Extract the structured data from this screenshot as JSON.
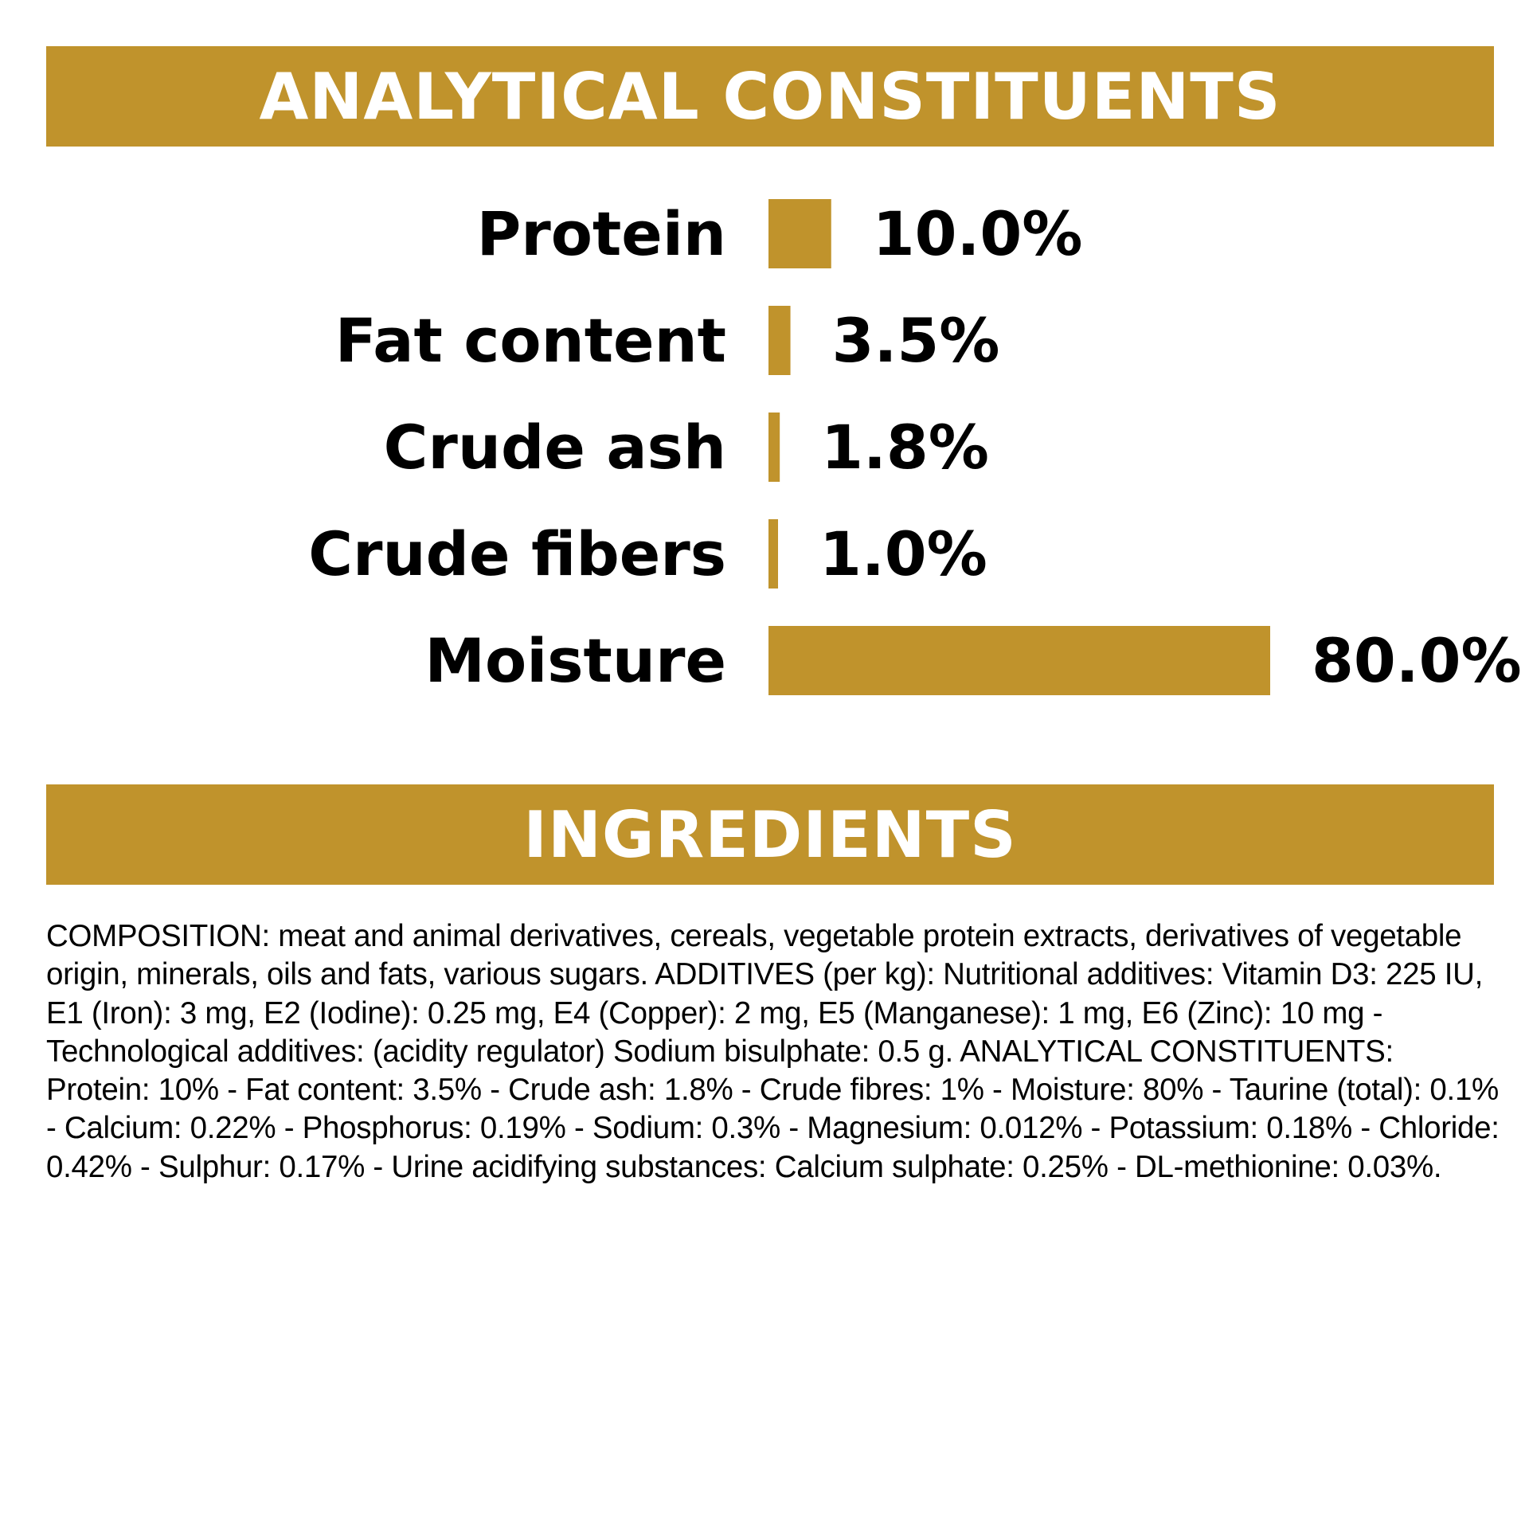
{
  "colors": {
    "accent": "#c0932c",
    "banner_text": "#ffffff",
    "text": "#000000",
    "background": "#ffffff"
  },
  "sections": {
    "analytical_title": "ANALYTICAL CONSTITUENTS",
    "ingredients_title": "INGREDIENTS"
  },
  "chart_data": {
    "type": "bar",
    "orientation": "horizontal",
    "categories": [
      "Protein",
      "Fat content",
      "Crude ash",
      "Crude fibers",
      "Moisture"
    ],
    "values": [
      10.0,
      3.5,
      1.8,
      1.0,
      80.0
    ],
    "value_labels": [
      "10.0%",
      "3.5%",
      "1.8%",
      "1.0%",
      "80.0%"
    ],
    "xlim": [
      0,
      80
    ],
    "bar_color": "#c0932c",
    "grid": false,
    "axes_visible": false
  },
  "ingredients": {
    "text": "COMPOSITION: meat and animal derivatives, cereals, vegetable protein extracts, derivatives of vegetable origin, minerals, oils and fats, various sugars. ADDITIVES (per kg): Nutritional additives: Vitamin D3: 225 IU, E1 (Iron): 3 mg, E2 (Iodine): 0.25 mg, E4 (Copper): 2 mg, E5 (Manganese): 1 mg, E6 (Zinc): 10 mg - Technological additives: (acidity regulator) Sodium bisulphate: 0.5 g. ANALYTICAL CONSTITUENTS: Protein: 10% - Fat content: 3.5% - Crude ash: 1.8% - Crude fibres: 1% - Moisture: 80% - Taurine (total): 0.1% - Calcium: 0.22% - Phosphorus: 0.19% - Sodium: 0.3% - Magnesium: 0.012% - Potassium: 0.18% - Chloride: 0.42% - Sulphur: 0.17% - Urine acidifying substances: Calcium sulphate: 0.25% - DL-methionine: 0.03%."
  }
}
